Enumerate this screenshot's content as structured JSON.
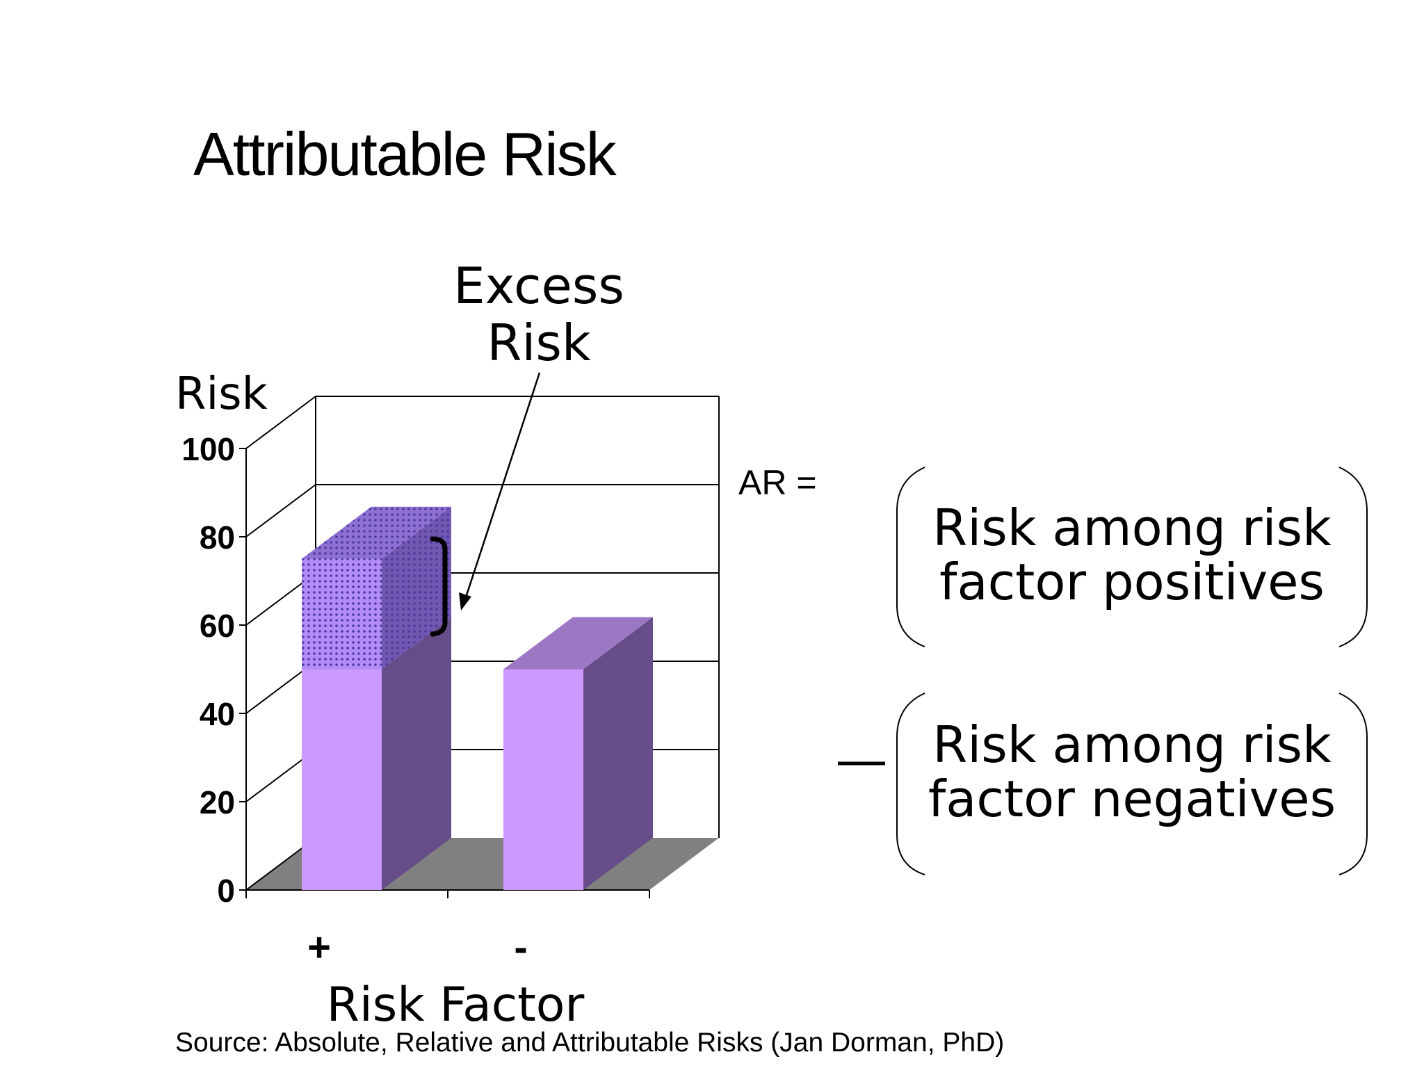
{
  "slide": {
    "title": "Attributable Risk",
    "source": "Source: Absolute, Relative and Attributable Risks (Jan Dorman, PhD)"
  },
  "annotation": {
    "line1": "Excess",
    "line2": "Risk"
  },
  "formula": {
    "ar_label": "AR =",
    "term1_line1": "Risk among risk",
    "term1_line2": "factor positives",
    "term2_line1": "Risk among risk",
    "term2_line2": "factor negatives"
  },
  "colors": {
    "bar_front": "#cc99ff",
    "bar_side": "#664d8a",
    "bar_top": "#9b77c4",
    "excess_front": "#b48cf5",
    "excess_side": "#7257b0",
    "excess_top": "#8e6fd2",
    "floor": "#808080",
    "dots": "#4a3aa0"
  },
  "chart_data": {
    "type": "bar",
    "title": "",
    "xlabel": "Risk Factor",
    "ylabel": "Risk",
    "categories": [
      "+",
      "-"
    ],
    "series": [
      {
        "name": "",
        "values": [
          50,
          50
        ]
      },
      {
        "name": "",
        "values": [
          25,
          0
        ]
      }
    ],
    "yticks": [
      "0",
      "20",
      "40",
      "60",
      "80",
      "100"
    ],
    "ylim": [
      0,
      100
    ],
    "grid": true,
    "three_d": true,
    "stacked": true
  }
}
